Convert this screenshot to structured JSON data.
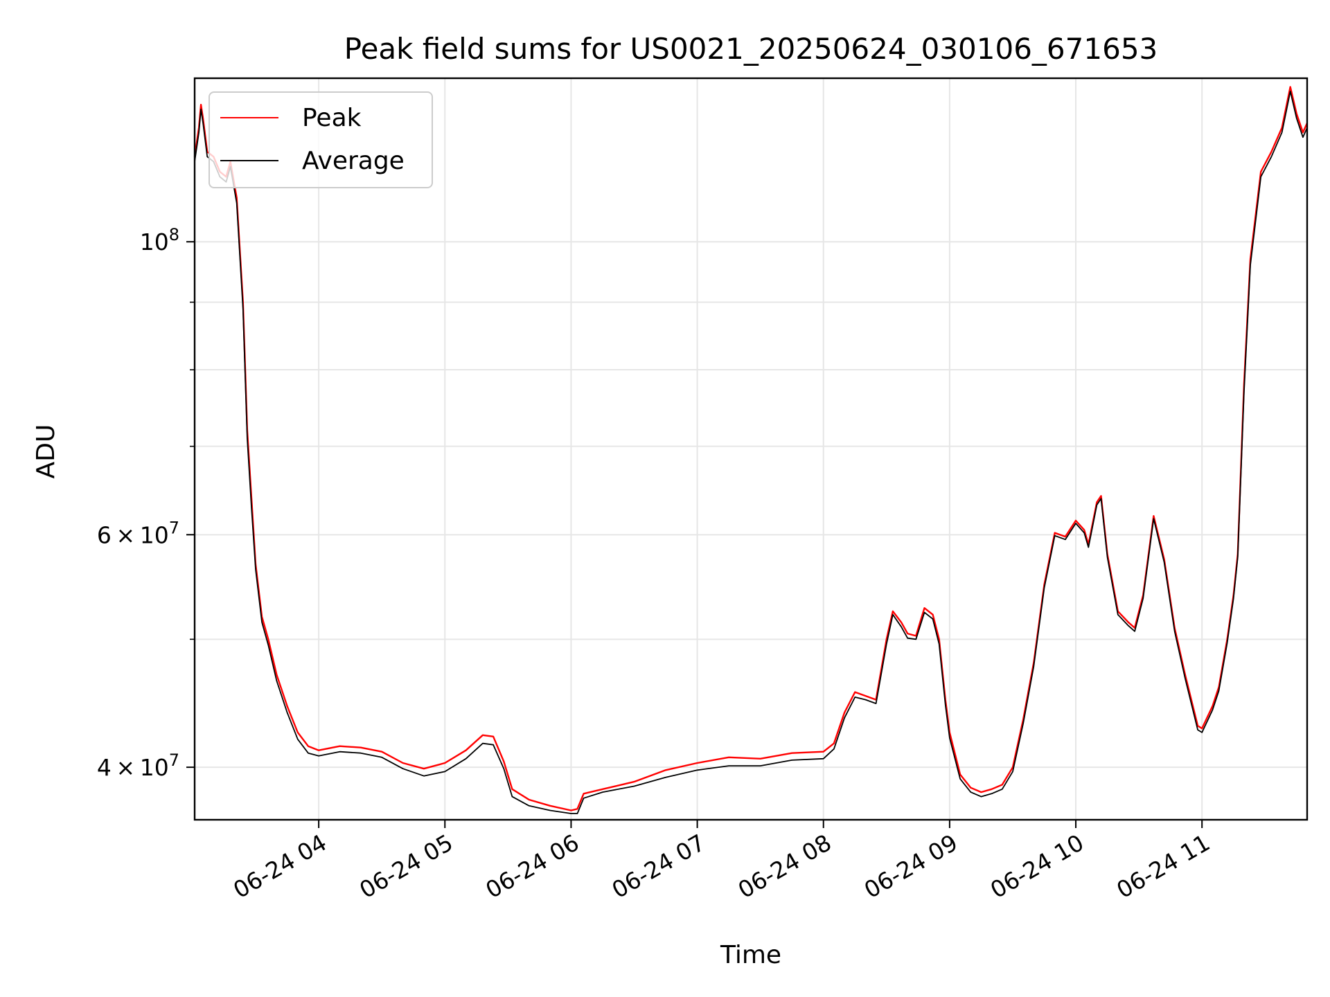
{
  "chart_data": {
    "type": "line",
    "title": "Peak field sums for US0021_20250624_030106_671653",
    "xlabel": "Time",
    "ylabel": "ADU",
    "y_scale": "log",
    "ylim": [
      36500000,
      133000000
    ],
    "xlim": [
      "2025-06-24 03:01",
      "2025-06-24 11:50"
    ],
    "grid": true,
    "legend_position": "upper-left",
    "x_ticks": [
      {
        "t": "2025-06-24 04:00",
        "label": "06-24 04"
      },
      {
        "t": "2025-06-24 05:00",
        "label": "06-24 05"
      },
      {
        "t": "2025-06-24 06:00",
        "label": "06-24 06"
      },
      {
        "t": "2025-06-24 07:00",
        "label": "06-24 07"
      },
      {
        "t": "2025-06-24 08:00",
        "label": "06-24 08"
      },
      {
        "t": "2025-06-24 09:00",
        "label": "06-24 09"
      },
      {
        "t": "2025-06-24 10:00",
        "label": "06-24 10"
      },
      {
        "t": "2025-06-24 11:00",
        "label": "06-24 11"
      }
    ],
    "y_ticks_major": [
      {
        "value": 100000000,
        "base": "10",
        "exp": "8"
      },
      {
        "value": 60000000,
        "mant": "6",
        "base": "10",
        "exp": "7"
      },
      {
        "value": 40000000,
        "mant": "4",
        "base": "10",
        "exp": "7"
      }
    ],
    "y_ticks_minor": [
      90000000,
      80000000,
      70000000,
      50000000
    ],
    "series": [
      {
        "name": "Peak",
        "color": "#ff0000",
        "points": [
          [
            "2025-06-24 03:01",
            116000000
          ],
          [
            "2025-06-24 03:03",
            122000000
          ],
          [
            "2025-06-24 03:04",
            127000000
          ],
          [
            "2025-06-24 03:05",
            124000000
          ],
          [
            "2025-06-24 03:07",
            117000000
          ],
          [
            "2025-06-24 03:10",
            116000000
          ],
          [
            "2025-06-24 03:13",
            113000000
          ],
          [
            "2025-06-24 03:16",
            112000000
          ],
          [
            "2025-06-24 03:18",
            115000000
          ],
          [
            "2025-06-24 03:21",
            108000000
          ],
          [
            "2025-06-24 03:24",
            90000000
          ],
          [
            "2025-06-24 03:26",
            72000000
          ],
          [
            "2025-06-24 03:28",
            64000000
          ],
          [
            "2025-06-24 03:30",
            57000000
          ],
          [
            "2025-06-24 03:33",
            52000000
          ],
          [
            "2025-06-24 03:36",
            50000000
          ],
          [
            "2025-06-24 03:40",
            47000000
          ],
          [
            "2025-06-24 03:45",
            44500000
          ],
          [
            "2025-06-24 03:50",
            42500000
          ],
          [
            "2025-06-24 03:55",
            41500000
          ],
          [
            "2025-06-24 04:00",
            41200000
          ],
          [
            "2025-06-24 04:10",
            41500000
          ],
          [
            "2025-06-24 04:20",
            41400000
          ],
          [
            "2025-06-24 04:30",
            41100000
          ],
          [
            "2025-06-24 04:40",
            40300000
          ],
          [
            "2025-06-24 04:50",
            39900000
          ],
          [
            "2025-06-24 05:00",
            40300000
          ],
          [
            "2025-06-24 05:10",
            41200000
          ],
          [
            "2025-06-24 05:18",
            42300000
          ],
          [
            "2025-06-24 05:23",
            42200000
          ],
          [
            "2025-06-24 05:28",
            40400000
          ],
          [
            "2025-06-24 05:32",
            38500000
          ],
          [
            "2025-06-24 05:40",
            37800000
          ],
          [
            "2025-06-24 05:50",
            37400000
          ],
          [
            "2025-06-24 06:00",
            37100000
          ],
          [
            "2025-06-24 06:03",
            37200000
          ],
          [
            "2025-06-24 06:06",
            38200000
          ],
          [
            "2025-06-24 06:15",
            38500000
          ],
          [
            "2025-06-24 06:30",
            39000000
          ],
          [
            "2025-06-24 06:45",
            39800000
          ],
          [
            "2025-06-24 07:00",
            40300000
          ],
          [
            "2025-06-24 07:15",
            40700000
          ],
          [
            "2025-06-24 07:30",
            40600000
          ],
          [
            "2025-06-24 07:45",
            41000000
          ],
          [
            "2025-06-24 08:00",
            41100000
          ],
          [
            "2025-06-24 08:05",
            41700000
          ],
          [
            "2025-06-24 08:10",
            44000000
          ],
          [
            "2025-06-24 08:15",
            45600000
          ],
          [
            "2025-06-24 08:20",
            45300000
          ],
          [
            "2025-06-24 08:25",
            45000000
          ],
          [
            "2025-06-24 08:30",
            50000000
          ],
          [
            "2025-06-24 08:33",
            52500000
          ],
          [
            "2025-06-24 08:37",
            51500000
          ],
          [
            "2025-06-24 08:40",
            50500000
          ],
          [
            "2025-06-24 08:44",
            50300000
          ],
          [
            "2025-06-24 08:48",
            52800000
          ],
          [
            "2025-06-24 08:52",
            52200000
          ],
          [
            "2025-06-24 08:55",
            50000000
          ],
          [
            "2025-06-24 08:58",
            45000000
          ],
          [
            "2025-06-24 09:00",
            42500000
          ],
          [
            "2025-06-24 09:05",
            39500000
          ],
          [
            "2025-06-24 09:10",
            38600000
          ],
          [
            "2025-06-24 09:15",
            38300000
          ],
          [
            "2025-06-24 09:20",
            38500000
          ],
          [
            "2025-06-24 09:25",
            38800000
          ],
          [
            "2025-06-24 09:30",
            40000000
          ],
          [
            "2025-06-24 09:35",
            43500000
          ],
          [
            "2025-06-24 09:40",
            48000000
          ],
          [
            "2025-06-24 09:45",
            55000000
          ],
          [
            "2025-06-24 09:50",
            60200000
          ],
          [
            "2025-06-24 09:55",
            59800000
          ],
          [
            "2025-06-24 10:00",
            61500000
          ],
          [
            "2025-06-24 10:04",
            60500000
          ],
          [
            "2025-06-24 10:06",
            59000000
          ],
          [
            "2025-06-24 10:10",
            63500000
          ],
          [
            "2025-06-24 10:12",
            64200000
          ],
          [
            "2025-06-24 10:15",
            58000000
          ],
          [
            "2025-06-24 10:20",
            52500000
          ],
          [
            "2025-06-24 10:25",
            51500000
          ],
          [
            "2025-06-24 10:28",
            51000000
          ],
          [
            "2025-06-24 10:32",
            54000000
          ],
          [
            "2025-06-24 10:37",
            62000000
          ],
          [
            "2025-06-24 10:42",
            57500000
          ],
          [
            "2025-06-24 10:47",
            51000000
          ],
          [
            "2025-06-24 10:52",
            47000000
          ],
          [
            "2025-06-24 10:58",
            43000000
          ],
          [
            "2025-06-24 11:00",
            42800000
          ],
          [
            "2025-06-24 11:05",
            44500000
          ],
          [
            "2025-06-24 11:08",
            46000000
          ],
          [
            "2025-06-24 11:12",
            50000000
          ],
          [
            "2025-06-24 11:15",
            54000000
          ],
          [
            "2025-06-24 11:17",
            58000000
          ],
          [
            "2025-06-24 11:20",
            78000000
          ],
          [
            "2025-06-24 11:23",
            97000000
          ],
          [
            "2025-06-24 11:28",
            113000000
          ],
          [
            "2025-06-24 11:33",
            117000000
          ],
          [
            "2025-06-24 11:38",
            122000000
          ],
          [
            "2025-06-24 11:42",
            131000000
          ],
          [
            "2025-06-24 11:45",
            125000000
          ],
          [
            "2025-06-24 11:48",
            121000000
          ],
          [
            "2025-06-24 11:50",
            123000000
          ]
        ]
      },
      {
        "name": "Average",
        "color": "#000000",
        "points": [
          [
            "2025-06-24 03:01",
            115000000
          ],
          [
            "2025-06-24 03:03",
            121000000
          ],
          [
            "2025-06-24 03:04",
            126000000
          ],
          [
            "2025-06-24 03:05",
            123000000
          ],
          [
            "2025-06-24 03:07",
            116000000
          ],
          [
            "2025-06-24 03:10",
            115000000
          ],
          [
            "2025-06-24 03:13",
            112000000
          ],
          [
            "2025-06-24 03:16",
            111000000
          ],
          [
            "2025-06-24 03:18",
            114000000
          ],
          [
            "2025-06-24 03:21",
            107000000
          ],
          [
            "2025-06-24 03:24",
            89000000
          ],
          [
            "2025-06-24 03:26",
            71000000
          ],
          [
            "2025-06-24 03:28",
            63000000
          ],
          [
            "2025-06-24 03:30",
            56500000
          ],
          [
            "2025-06-24 03:33",
            51500000
          ],
          [
            "2025-06-24 03:36",
            49500000
          ],
          [
            "2025-06-24 03:40",
            46500000
          ],
          [
            "2025-06-24 03:45",
            44000000
          ],
          [
            "2025-06-24 03:50",
            42000000
          ],
          [
            "2025-06-24 03:55",
            41000000
          ],
          [
            "2025-06-24 04:00",
            40800000
          ],
          [
            "2025-06-24 04:10",
            41100000
          ],
          [
            "2025-06-24 04:20",
            41000000
          ],
          [
            "2025-06-24 04:30",
            40700000
          ],
          [
            "2025-06-24 04:40",
            39900000
          ],
          [
            "2025-06-24 04:50",
            39400000
          ],
          [
            "2025-06-24 05:00",
            39700000
          ],
          [
            "2025-06-24 05:10",
            40600000
          ],
          [
            "2025-06-24 05:18",
            41700000
          ],
          [
            "2025-06-24 05:23",
            41600000
          ],
          [
            "2025-06-24 05:28",
            39900000
          ],
          [
            "2025-06-24 05:32",
            38000000
          ],
          [
            "2025-06-24 05:40",
            37400000
          ],
          [
            "2025-06-24 05:50",
            37100000
          ],
          [
            "2025-06-24 06:00",
            36900000
          ],
          [
            "2025-06-24 06:03",
            36900000
          ],
          [
            "2025-06-24 06:06",
            37900000
          ],
          [
            "2025-06-24 06:15",
            38300000
          ],
          [
            "2025-06-24 06:30",
            38700000
          ],
          [
            "2025-06-24 06:45",
            39300000
          ],
          [
            "2025-06-24 07:00",
            39800000
          ],
          [
            "2025-06-24 07:15",
            40100000
          ],
          [
            "2025-06-24 07:30",
            40100000
          ],
          [
            "2025-06-24 07:45",
            40500000
          ],
          [
            "2025-06-24 08:00",
            40600000
          ],
          [
            "2025-06-24 08:05",
            41300000
          ],
          [
            "2025-06-24 08:10",
            43600000
          ],
          [
            "2025-06-24 08:15",
            45200000
          ],
          [
            "2025-06-24 08:20",
            45000000
          ],
          [
            "2025-06-24 08:25",
            44700000
          ],
          [
            "2025-06-24 08:30",
            49600000
          ],
          [
            "2025-06-24 08:33",
            52200000
          ],
          [
            "2025-06-24 08:37",
            51100000
          ],
          [
            "2025-06-24 08:40",
            50100000
          ],
          [
            "2025-06-24 08:44",
            50000000
          ],
          [
            "2025-06-24 08:48",
            52400000
          ],
          [
            "2025-06-24 08:52",
            51800000
          ],
          [
            "2025-06-24 08:55",
            49600000
          ],
          [
            "2025-06-24 08:58",
            44600000
          ],
          [
            "2025-06-24 09:00",
            42100000
          ],
          [
            "2025-06-24 09:05",
            39200000
          ],
          [
            "2025-06-24 09:10",
            38300000
          ],
          [
            "2025-06-24 09:15",
            38000000
          ],
          [
            "2025-06-24 09:20",
            38200000
          ],
          [
            "2025-06-24 09:25",
            38500000
          ],
          [
            "2025-06-24 09:30",
            39700000
          ],
          [
            "2025-06-24 09:35",
            43200000
          ],
          [
            "2025-06-24 09:40",
            47700000
          ],
          [
            "2025-06-24 09:45",
            54700000
          ],
          [
            "2025-06-24 09:50",
            59900000
          ],
          [
            "2025-06-24 09:55",
            59500000
          ],
          [
            "2025-06-24 10:00",
            61200000
          ],
          [
            "2025-06-24 10:04",
            60200000
          ],
          [
            "2025-06-24 10:06",
            58700000
          ],
          [
            "2025-06-24 10:10",
            63200000
          ],
          [
            "2025-06-24 10:12",
            63900000
          ],
          [
            "2025-06-24 10:15",
            57700000
          ],
          [
            "2025-06-24 10:20",
            52200000
          ],
          [
            "2025-06-24 10:25",
            51200000
          ],
          [
            "2025-06-24 10:28",
            50700000
          ],
          [
            "2025-06-24 10:32",
            53700000
          ],
          [
            "2025-06-24 10:37",
            61700000
          ],
          [
            "2025-06-24 10:42",
            57200000
          ],
          [
            "2025-06-24 10:47",
            50700000
          ],
          [
            "2025-06-24 10:52",
            46700000
          ],
          [
            "2025-06-24 10:58",
            42700000
          ],
          [
            "2025-06-24 11:00",
            42500000
          ],
          [
            "2025-06-24 11:05",
            44200000
          ],
          [
            "2025-06-24 11:08",
            45700000
          ],
          [
            "2025-06-24 11:12",
            49700000
          ],
          [
            "2025-06-24 11:15",
            53700000
          ],
          [
            "2025-06-24 11:17",
            57700000
          ],
          [
            "2025-06-24 11:20",
            77000000
          ],
          [
            "2025-06-24 11:23",
            96000000
          ],
          [
            "2025-06-24 11:28",
            112000000
          ],
          [
            "2025-06-24 11:33",
            116000000
          ],
          [
            "2025-06-24 11:38",
            121000000
          ],
          [
            "2025-06-24 11:42",
            130000000
          ],
          [
            "2025-06-24 11:45",
            124000000
          ],
          [
            "2025-06-24 11:48",
            120000000
          ],
          [
            "2025-06-24 11:50",
            122000000
          ]
        ]
      }
    ]
  }
}
